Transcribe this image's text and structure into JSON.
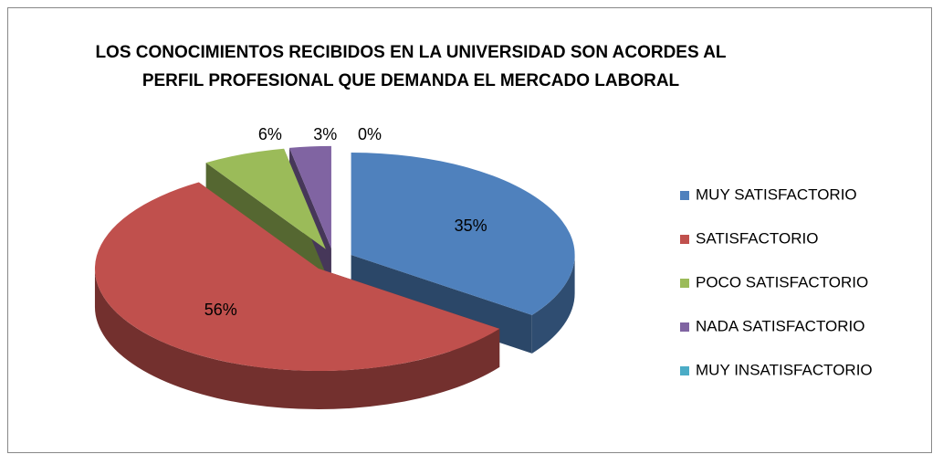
{
  "chart_data": {
    "type": "pie",
    "title": [
      "LOS CONOCIMIENTOS RECIBIDOS EN LA UNIVERSIDAD SON ACORDES AL",
      "PERFIL PROFESIONAL QUE DEMANDA EL MERCADO LABORAL"
    ],
    "categories": [
      "MUY SATISFACTORIO",
      "SATISFACTORIO",
      "POCO SATISFACTORIO",
      "NADA SATISFACTORIO",
      "MUY INSATISFACTORIO"
    ],
    "values": [
      35,
      56,
      6,
      3,
      0
    ],
    "value_labels": [
      "35%",
      "56%",
      "6%",
      "3%",
      "0%"
    ],
    "colors": [
      "#4f81bd",
      "#c0504d",
      "#9bbb59",
      "#8064a2",
      "#4bacc6"
    ],
    "legend": "right"
  }
}
